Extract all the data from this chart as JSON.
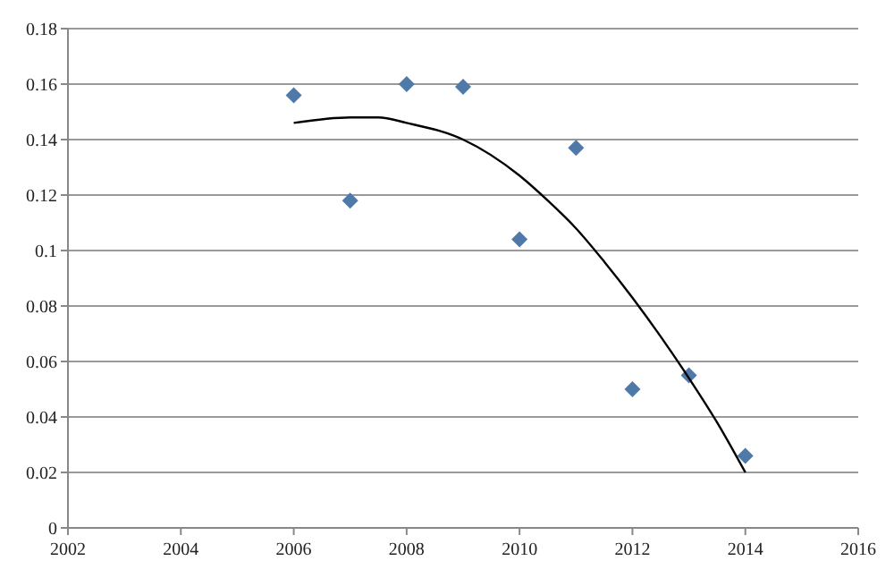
{
  "chart_data": {
    "type": "scatter",
    "marker": "diamond",
    "grid": "y",
    "xlim": [
      2002,
      2016
    ],
    "xticks": [
      2002,
      2004,
      2006,
      2008,
      2010,
      2012,
      2014,
      2016
    ],
    "ylim": [
      0,
      0.18
    ],
    "yticks": [
      {
        "value": 0,
        "label": "0"
      },
      {
        "value": 0.02,
        "label": "0.02"
      },
      {
        "value": 0.04,
        "label": "0.04"
      },
      {
        "value": 0.06,
        "label": "0.06"
      },
      {
        "value": 0.08,
        "label": "0.08"
      },
      {
        "value": 0.1,
        "label": "0.1"
      },
      {
        "value": 0.12,
        "label": "0.12"
      },
      {
        "value": 0.14,
        "label": "0.14"
      },
      {
        "value": 0.16,
        "label": "0.16"
      },
      {
        "value": 0.18,
        "label": "0.18"
      }
    ],
    "series": [
      {
        "color": "#4f79a8",
        "x": [
          2006,
          2007,
          2008,
          2009,
          2010,
          2011,
          2012,
          2013,
          2014
        ],
        "values": [
          0.156,
          0.118,
          0.16,
          0.159,
          0.104,
          0.137,
          0.05,
          0.055,
          0.026
        ]
      },
      {
        "type": "line",
        "color": "#000000",
        "marker": "none",
        "x": [
          2006,
          2007,
          2007.5,
          2008,
          2009,
          2010,
          2010.5,
          2011,
          2011.5,
          2012,
          2012.5,
          2013,
          2013.5,
          2014
        ],
        "values": [
          0.146,
          0.148,
          0.148,
          0.146,
          0.14,
          0.127,
          0.118,
          0.108,
          0.096,
          0.083,
          0.069,
          0.054,
          0.038,
          0.02
        ]
      }
    ]
  }
}
